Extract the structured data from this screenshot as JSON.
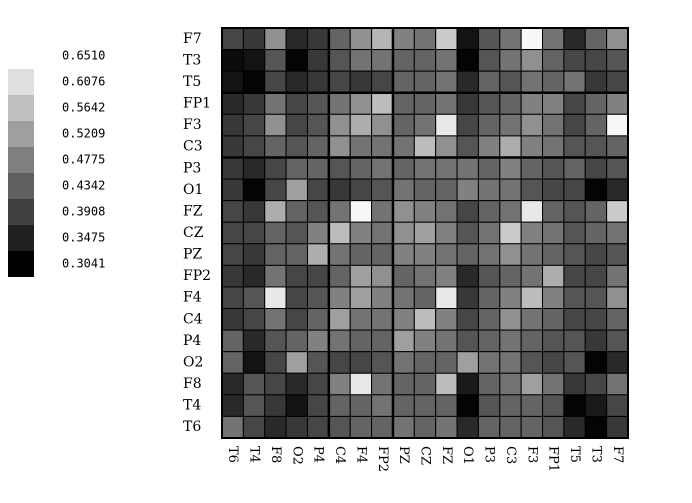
{
  "chart_data": {
    "type": "heatmap",
    "rows": [
      "F7",
      "T3",
      "T5",
      "FP1",
      "F3",
      "C3",
      "P3",
      "O1",
      "FZ",
      "CZ",
      "PZ",
      "FP2",
      "F4",
      "C4",
      "P4",
      "O2",
      "F8",
      "T4",
      "T6"
    ],
    "columns": [
      "T6",
      "T4",
      "F8",
      "O2",
      "P4",
      "C4",
      "F4",
      "FP2",
      "PZ",
      "CZ",
      "FZ",
      "O1",
      "P3",
      "C3",
      "F3",
      "FP1",
      "T5",
      "T3",
      "F7"
    ],
    "values": [
      [
        0.4,
        0.38,
        0.5,
        0.36,
        0.38,
        0.44,
        0.5,
        0.55,
        0.48,
        0.46,
        0.58,
        0.33,
        0.42,
        0.46,
        0.64,
        0.46,
        0.36,
        0.44,
        0.5
      ],
      [
        0.32,
        0.33,
        0.42,
        0.31,
        0.38,
        0.42,
        0.46,
        0.46,
        0.44,
        0.44,
        0.46,
        0.31,
        0.42,
        0.46,
        0.5,
        0.44,
        0.4,
        0.4,
        0.42
      ],
      [
        0.33,
        0.31,
        0.4,
        0.36,
        0.38,
        0.4,
        0.38,
        0.4,
        0.44,
        0.44,
        0.46,
        0.36,
        0.44,
        0.42,
        0.46,
        0.44,
        0.46,
        0.38,
        0.4
      ],
      [
        0.36,
        0.38,
        0.46,
        0.4,
        0.42,
        0.46,
        0.5,
        0.56,
        0.44,
        0.44,
        0.46,
        0.38,
        0.42,
        0.44,
        0.48,
        0.48,
        0.4,
        0.44,
        0.48
      ],
      [
        0.38,
        0.4,
        0.5,
        0.4,
        0.42,
        0.5,
        0.54,
        0.5,
        0.44,
        0.46,
        0.62,
        0.4,
        0.44,
        0.46,
        0.5,
        0.46,
        0.4,
        0.44,
        0.64
      ],
      [
        0.38,
        0.4,
        0.44,
        0.42,
        0.44,
        0.5,
        0.46,
        0.46,
        0.46,
        0.56,
        0.5,
        0.42,
        0.48,
        0.54,
        0.48,
        0.46,
        0.42,
        0.42,
        0.44
      ],
      [
        0.38,
        0.36,
        0.4,
        0.44,
        0.44,
        0.42,
        0.44,
        0.46,
        0.44,
        0.46,
        0.46,
        0.46,
        0.44,
        0.48,
        0.44,
        0.42,
        0.44,
        0.4,
        0.42
      ],
      [
        0.38,
        0.31,
        0.4,
        0.52,
        0.4,
        0.38,
        0.4,
        0.42,
        0.46,
        0.44,
        0.44,
        0.48,
        0.46,
        0.46,
        0.42,
        0.4,
        0.4,
        0.31,
        0.36
      ],
      [
        0.4,
        0.38,
        0.54,
        0.44,
        0.42,
        0.46,
        0.64,
        0.46,
        0.5,
        0.48,
        0.46,
        0.4,
        0.44,
        0.46,
        0.62,
        0.44,
        0.42,
        0.44,
        0.58
      ],
      [
        0.4,
        0.4,
        0.44,
        0.42,
        0.48,
        0.56,
        0.48,
        0.46,
        0.5,
        0.52,
        0.48,
        0.42,
        0.46,
        0.58,
        0.48,
        0.46,
        0.42,
        0.44,
        0.46
      ],
      [
        0.4,
        0.38,
        0.44,
        0.44,
        0.54,
        0.46,
        0.44,
        0.44,
        0.48,
        0.48,
        0.46,
        0.44,
        0.46,
        0.5,
        0.46,
        0.44,
        0.42,
        0.4,
        0.42
      ],
      [
        0.38,
        0.36,
        0.46,
        0.4,
        0.4,
        0.44,
        0.52,
        0.5,
        0.44,
        0.46,
        0.48,
        0.36,
        0.42,
        0.44,
        0.46,
        0.54,
        0.4,
        0.4,
        0.46
      ],
      [
        0.4,
        0.42,
        0.62,
        0.4,
        0.42,
        0.48,
        0.52,
        0.48,
        0.46,
        0.44,
        0.62,
        0.38,
        0.44,
        0.48,
        0.56,
        0.48,
        0.42,
        0.42,
        0.5
      ],
      [
        0.38,
        0.4,
        0.46,
        0.4,
        0.44,
        0.52,
        0.46,
        0.46,
        0.48,
        0.56,
        0.48,
        0.4,
        0.44,
        0.5,
        0.46,
        0.44,
        0.4,
        0.4,
        0.44
      ],
      [
        0.44,
        0.36,
        0.42,
        0.44,
        0.48,
        0.46,
        0.44,
        0.44,
        0.52,
        0.48,
        0.46,
        0.42,
        0.44,
        0.46,
        0.44,
        0.42,
        0.42,
        0.38,
        0.42
      ],
      [
        0.44,
        0.33,
        0.4,
        0.52,
        0.42,
        0.4,
        0.4,
        0.42,
        0.46,
        0.44,
        0.44,
        0.52,
        0.46,
        0.46,
        0.42,
        0.4,
        0.42,
        0.31,
        0.36
      ],
      [
        0.36,
        0.42,
        0.4,
        0.36,
        0.4,
        0.48,
        0.62,
        0.46,
        0.44,
        0.44,
        0.56,
        0.34,
        0.44,
        0.46,
        0.52,
        0.46,
        0.38,
        0.4,
        0.46
      ],
      [
        0.36,
        0.42,
        0.38,
        0.33,
        0.4,
        0.44,
        0.44,
        0.46,
        0.44,
        0.44,
        0.44,
        0.31,
        0.42,
        0.44,
        0.44,
        0.42,
        0.31,
        0.34,
        0.4
      ],
      [
        0.46,
        0.4,
        0.36,
        0.38,
        0.4,
        0.42,
        0.44,
        0.44,
        0.46,
        0.44,
        0.46,
        0.36,
        0.44,
        0.44,
        0.44,
        0.42,
        0.36,
        0.31,
        0.38
      ]
    ],
    "zlim": [
      0.3041,
      0.651
    ],
    "zticks": [
      {
        "value": 0.651,
        "label": "0.6510"
      },
      0.6076,
      0.5642,
      0.5209,
      0.4775,
      0.4342,
      0.3908,
      0.3475,
      0.3041
    ]
  }
}
